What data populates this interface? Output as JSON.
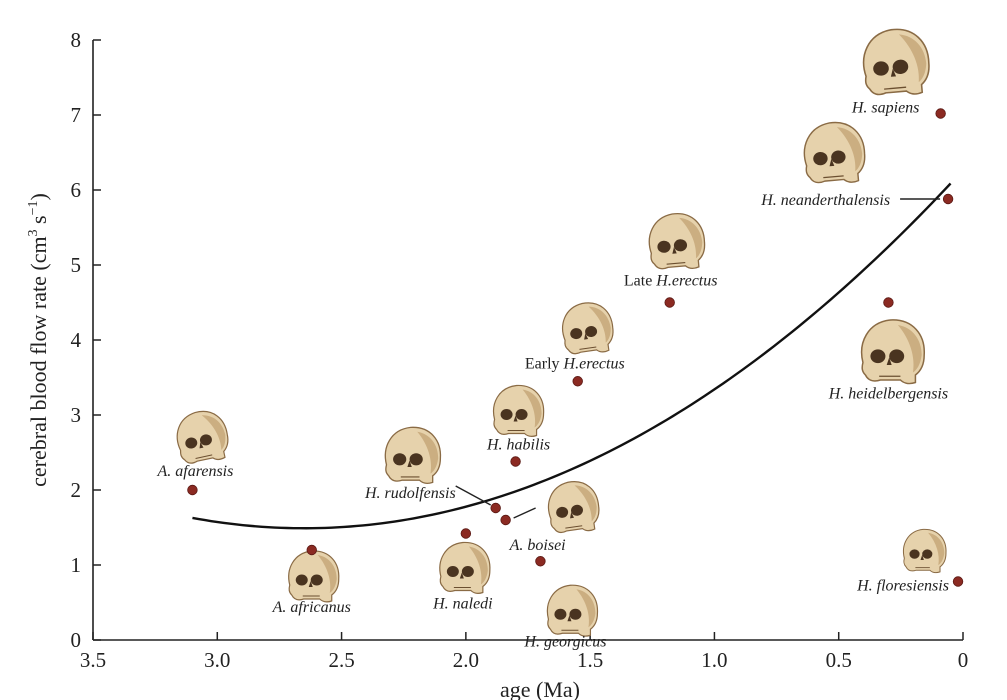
{
  "chart_data": {
    "type": "scatter",
    "title": "",
    "xlabel": "age (Ma)",
    "ylabel_main": "cerebral blood flow rate  (cm",
    "ylabel_sup1": "3",
    "ylabel_mid": " s",
    "ylabel_sup2": "−1",
    "ylabel_end": ")",
    "xlim": [
      3.5,
      0
    ],
    "ylim": [
      0,
      8
    ],
    "xticks": [
      "3.5",
      "3.0",
      "2.5",
      "2.0",
      "1.5",
      "1.0",
      "0.5",
      "0"
    ],
    "yticks": [
      "0",
      "1",
      "2",
      "3",
      "4",
      "5",
      "6",
      "7",
      "8"
    ],
    "grid": false,
    "marker_color": "#8b2a22",
    "curve_color": "#111111",
    "skull_color": "#e6d2ac",
    "points": [
      {
        "name": "A. afarensis",
        "prefix": "",
        "species": "A. afarensis",
        "x": 3.1,
        "y": 2.0
      },
      {
        "name": "A. africanus",
        "prefix": "",
        "species": "A. africanus",
        "x": 2.62,
        "y": 1.2
      },
      {
        "name": "H. rudolfensis",
        "prefix": "",
        "species": "H. rudolfensis",
        "x": 1.88,
        "y": 1.76
      },
      {
        "name": "A. boisei",
        "prefix": "",
        "species": "A. boisei",
        "x": 1.84,
        "y": 1.6
      },
      {
        "name": "H. naledi",
        "prefix": "",
        "species": "H. naledi",
        "x": 2.0,
        "y": 1.42
      },
      {
        "name": "H. georgicus",
        "prefix": "",
        "species": "H. georgicus",
        "x": 1.7,
        "y": 1.05
      },
      {
        "name": "H. habilis",
        "prefix": "",
        "species": "H. habilis",
        "x": 1.8,
        "y": 2.38
      },
      {
        "name": "Early H.erectus",
        "prefix": "Early ",
        "species": "H.erectus",
        "x": 1.55,
        "y": 3.45
      },
      {
        "name": "Late H.erectus",
        "prefix": "Late ",
        "species": "H.erectus",
        "x": 1.18,
        "y": 4.5
      },
      {
        "name": "H. heidelbergensis",
        "prefix": "",
        "species": "H. heidelbergensis",
        "x": 0.3,
        "y": 4.5
      },
      {
        "name": "H. neanderthalensis",
        "prefix": "",
        "species": "H. neanderthalensis",
        "x": 0.06,
        "y": 5.88
      },
      {
        "name": "H. sapiens",
        "prefix": "",
        "species": "H. sapiens",
        "x": 0.09,
        "y": 7.02
      },
      {
        "name": "H. floresiensis",
        "prefix": "",
        "species": "H. floresiensis",
        "x": 0.02,
        "y": 0.78
      }
    ],
    "fit_curve": {
      "type": "quadratic",
      "vertex_x": 2.65,
      "vertex_y": 1.49,
      "a": 0.68,
      "x_from": 3.1,
      "x_to": 0.05
    }
  }
}
